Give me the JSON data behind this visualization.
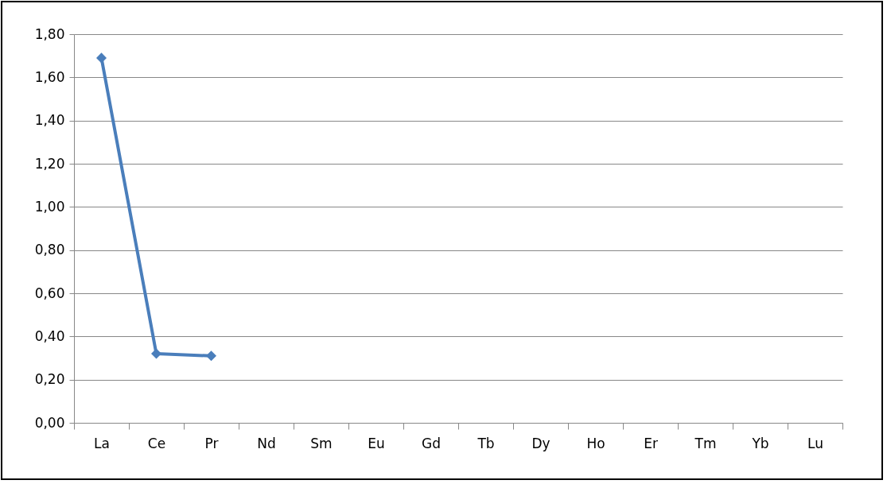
{
  "chart_data": {
    "type": "line",
    "categories": [
      "La",
      "Ce",
      "Pr",
      "Nd",
      "Sm",
      "Eu",
      "Gd",
      "Tb",
      "Dy",
      "Ho",
      "Er",
      "Tm",
      "Yb",
      "Lu"
    ],
    "series": [
      {
        "color": "#4a7ebb",
        "values": [
          1.69,
          0.32,
          0.31,
          null,
          null,
          null,
          null,
          null,
          null,
          null,
          null,
          null,
          null,
          null
        ]
      }
    ],
    "ylim": [
      0,
      1.8
    ],
    "yticks": [
      {
        "value": 0,
        "label": "0,00"
      },
      {
        "value": 0.2,
        "label": "0,20"
      },
      {
        "value": 0.4,
        "label": "0,40"
      },
      {
        "value": 0.6,
        "label": "0,60"
      },
      {
        "value": 0.8,
        "label": "0,80"
      },
      {
        "value": 1.0,
        "label": "1,00"
      },
      {
        "value": 1.2,
        "label": "1,20"
      },
      {
        "value": 1.4,
        "label": "1,40"
      },
      {
        "value": 1.6,
        "label": "1,60"
      },
      {
        "value": 1.8,
        "label": "1,80"
      }
    ],
    "grid": "y",
    "marker": "diamond",
    "line_style": "solid"
  }
}
